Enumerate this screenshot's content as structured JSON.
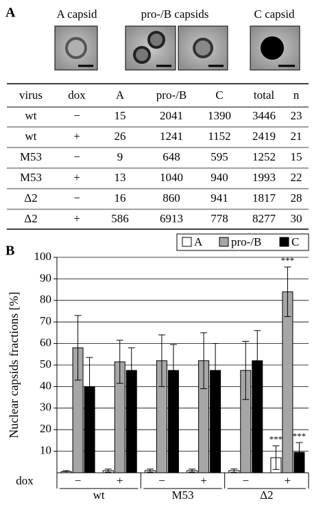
{
  "panel_a": {
    "label": "A",
    "image_labels": [
      "A capsid",
      "pro-/B capsids",
      "C capsid"
    ],
    "table": {
      "header": [
        "virus",
        "dox",
        "A",
        "pro-/B",
        "C",
        "total",
        "n"
      ],
      "rows": [
        [
          "wt",
          "−",
          "15",
          "2041",
          "1390",
          "3446",
          "23"
        ],
        [
          "wt",
          "+",
          "26",
          "1241",
          "1152",
          "2419",
          "21"
        ],
        [
          "M53",
          "−",
          "9",
          "648",
          "595",
          "1252",
          "15"
        ],
        [
          "M53",
          "+",
          "13",
          "1040",
          "940",
          "1993",
          "22"
        ],
        [
          "Δ2",
          "−",
          "16",
          "860",
          "941",
          "1817",
          "28"
        ],
        [
          "Δ2",
          "+",
          "586",
          "6913",
          "778",
          "8277",
          "30"
        ]
      ]
    }
  },
  "chart_data": {
    "type": "bar",
    "panel_label": "B",
    "y_label": "Nuclear capsids fractions [%]",
    "x_label": "dox",
    "categories": [
      "−",
      "+",
      "−",
      "+",
      "−",
      "+"
    ],
    "groups": [
      "wt",
      "M53",
      "Δ2"
    ],
    "ylim": [
      0,
      100
    ],
    "yticks": [
      10,
      20,
      30,
      40,
      50,
      60,
      70,
      80,
      90,
      100
    ],
    "grid": true,
    "legend": "top-right",
    "series": [
      {
        "name": "A",
        "color": "#ffffff",
        "values": [
          0.5,
          1,
          1,
          1,
          1,
          7
        ],
        "errors": [
          0.5,
          0.7,
          0.7,
          0.7,
          0.8,
          5.5
        ],
        "significance": [
          null,
          null,
          null,
          null,
          null,
          "***"
        ]
      },
      {
        "name": "pro-/B",
        "color": "#a6a6a6",
        "values": [
          58,
          51.5,
          52,
          52,
          47.5,
          84
        ],
        "errors": [
          15,
          10,
          12,
          13,
          13.5,
          11.5
        ],
        "significance": [
          null,
          null,
          null,
          null,
          null,
          "***"
        ]
      },
      {
        "name": "C",
        "color": "#000000",
        "values": [
          40,
          47.5,
          47.5,
          47.5,
          52,
          9.5
        ],
        "errors": [
          13.5,
          10.5,
          12,
          12.5,
          14,
          4.5
        ],
        "significance": [
          null,
          null,
          null,
          null,
          null,
          "***"
        ]
      }
    ]
  }
}
